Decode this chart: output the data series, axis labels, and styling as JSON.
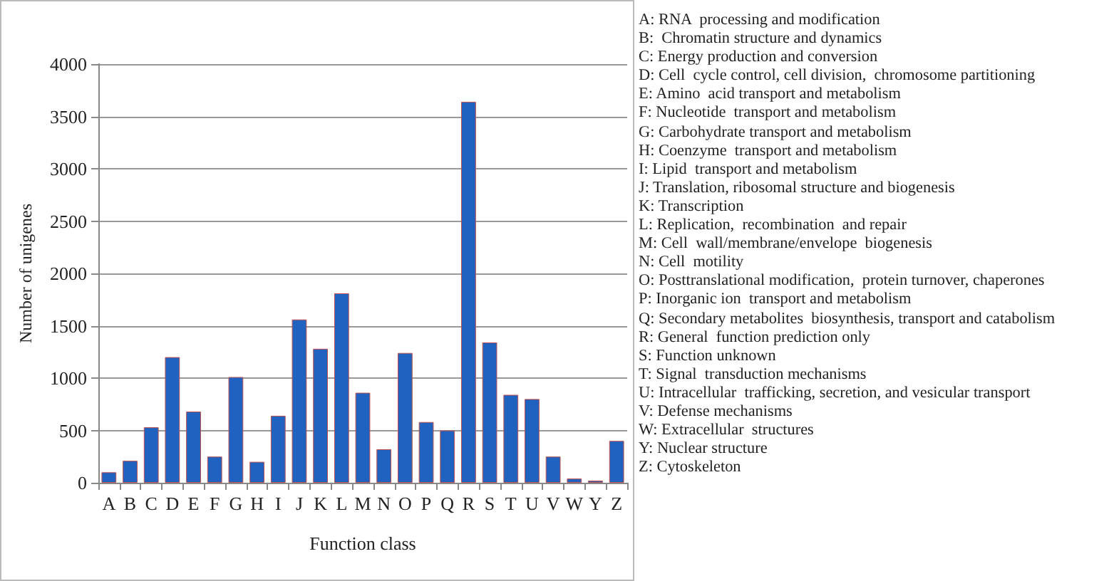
{
  "chart_data": {
    "type": "bar",
    "xlabel": "Function class",
    "ylabel": "Number of unigenes",
    "categories": [
      "A",
      "B",
      "C",
      "D",
      "E",
      "F",
      "G",
      "H",
      "I",
      "J",
      "K",
      "L",
      "M",
      "N",
      "O",
      "P",
      "Q",
      "R",
      "S",
      "T",
      "U",
      "V",
      "W",
      "Y",
      "Z"
    ],
    "values": [
      100,
      210,
      530,
      1200,
      680,
      250,
      1010,
      200,
      640,
      1560,
      1280,
      1810,
      860,
      320,
      1240,
      580,
      500,
      3640,
      1340,
      840,
      800,
      250,
      40,
      20,
      400
    ],
    "color": "#1f62bf",
    "ylim": [
      0,
      4000
    ],
    "yticks": [
      0,
      500,
      1000,
      1500,
      2000,
      2500,
      3000,
      3500,
      4000
    ],
    "grid": "y",
    "annotations": [
      "A: RNA  processing and modification",
      "B:  Chromatin structure and dynamics",
      "C: Energy production and conversion",
      "D: Cell  cycle control, cell division,  chromosome partitioning",
      "E: Amino  acid transport and metabolism",
      "F: Nucleotide  transport and metabolism",
      "G: Carbohydrate transport and metabolism",
      "H: Coenzyme  transport and metabolism",
      "I: Lipid  transport and metabolism",
      "J: Translation, ribosomal structure and biogenesis",
      "K: Transcription",
      "L: Replication,  recombination  and repair",
      "M: Cell  wall/membrane/envelope  biogenesis",
      "N: Cell  motility",
      "O: Posttranslational modification,  protein turnover, chaperones",
      "P: Inorganic ion  transport and metabolism",
      "Q: Secondary metabolites  biosynthesis, transport and catabolism",
      "R: General  function prediction only",
      "S: Function unknown",
      "T: Signal  transduction mechanisms",
      "U: Intracellular  trafficking, secretion, and vesicular transport",
      "V: Defense mechanisms",
      "W: Extracellular  structures",
      "Y: Nuclear structure",
      "Z: Cytoskeleton"
    ]
  }
}
